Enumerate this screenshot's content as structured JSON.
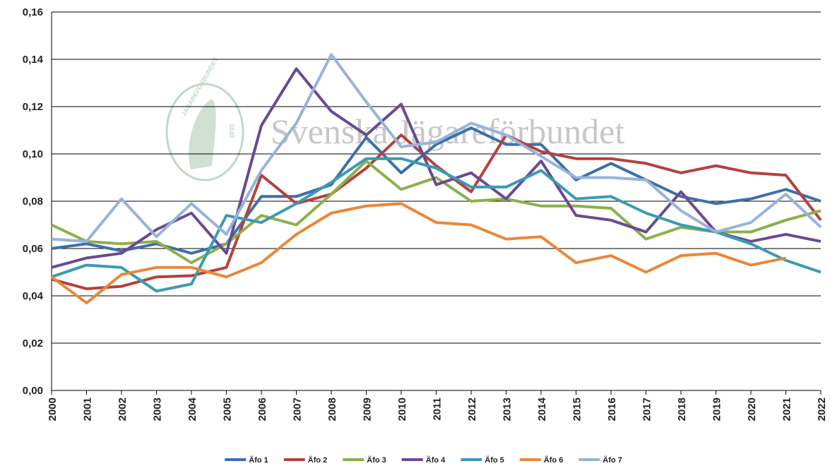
{
  "chart_data": {
    "type": "line",
    "watermark": "Svenska Jägareförbundet",
    "logo_text": "JÄGAREFÖRBUNDET",
    "logo_year": "1830",
    "x": [
      2000,
      2001,
      2002,
      2003,
      2004,
      2005,
      2006,
      2007,
      2008,
      2009,
      2010,
      2011,
      2012,
      2013,
      2014,
      2015,
      2016,
      2017,
      2018,
      2019,
      2020,
      2021,
      2022
    ],
    "xlim": [
      2000,
      2022
    ],
    "xticks": [
      2000,
      2001,
      2002,
      2003,
      2004,
      2005,
      2006,
      2007,
      2008,
      2009,
      2010,
      2011,
      2012,
      2013,
      2014,
      2015,
      2016,
      2017,
      2018,
      2019,
      2020,
      2021,
      2022
    ],
    "ylim": [
      0,
      0.16
    ],
    "yticks": [
      {
        "value": 0,
        "label": "0,00"
      },
      {
        "value": 0.02,
        "label": "0,02"
      },
      {
        "value": 0.04,
        "label": "0,04"
      },
      {
        "value": 0.06,
        "label": "0,06"
      },
      {
        "value": 0.08,
        "label": "0,08"
      },
      {
        "value": 0.1,
        "label": "0,10"
      },
      {
        "value": 0.12,
        "label": "0,12"
      },
      {
        "value": 0.14,
        "label": "0,14"
      },
      {
        "value": 0.16,
        "label": "0,16"
      }
    ],
    "grid": true,
    "legend": "bottom",
    "series": [
      {
        "name": "Äfo 1",
        "color": "#3d6faa",
        "values": [
          0.06,
          0.062,
          0.059,
          0.062,
          0.058,
          0.062,
          0.082,
          0.082,
          0.087,
          0.107,
          0.092,
          0.104,
          0.111,
          0.104,
          0.104,
          0.089,
          0.096,
          0.089,
          0.082,
          0.079,
          0.081,
          0.085,
          0.08
        ]
      },
      {
        "name": "Äfo 2",
        "color": "#b5413e",
        "values": [
          0.047,
          0.043,
          0.044,
          0.048,
          0.0485,
          0.052,
          0.091,
          0.079,
          0.083,
          0.094,
          0.108,
          0.095,
          0.084,
          0.108,
          0.101,
          0.098,
          0.098,
          0.096,
          0.092,
          0.095,
          0.092,
          0.091,
          0.072
        ]
      },
      {
        "name": "Äfo 3",
        "color": "#8cb04a",
        "values": [
          0.07,
          0.063,
          0.062,
          0.063,
          0.054,
          0.062,
          0.074,
          0.07,
          0.083,
          0.097,
          0.085,
          0.09,
          0.08,
          0.081,
          0.078,
          0.078,
          0.077,
          0.064,
          0.069,
          0.067,
          0.067,
          0.072,
          0.076
        ]
      },
      {
        "name": "Äfo 4",
        "color": "#6a4a92",
        "values": [
          0.052,
          0.056,
          0.058,
          0.068,
          0.075,
          0.058,
          0.112,
          0.136,
          0.118,
          0.108,
          0.121,
          0.087,
          0.092,
          0.081,
          0.097,
          0.074,
          0.072,
          0.067,
          0.084,
          0.067,
          0.063,
          0.066,
          0.063
        ]
      },
      {
        "name": "Äfo 5",
        "color": "#3a9bb3",
        "values": [
          0.048,
          0.053,
          0.052,
          0.042,
          0.045,
          0.074,
          0.071,
          0.079,
          0.088,
          0.098,
          0.098,
          0.094,
          0.086,
          0.086,
          0.093,
          0.081,
          0.082,
          0.075,
          0.07,
          0.067,
          0.062,
          0.055,
          0.05
        ]
      },
      {
        "name": "Äfo 6",
        "color": "#e8883a",
        "values": [
          0.048,
          0.037,
          0.049,
          0.052,
          0.052,
          0.048,
          0.054,
          0.066,
          0.075,
          0.078,
          0.079,
          0.071,
          0.07,
          0.064,
          0.065,
          0.054,
          0.057,
          0.05,
          0.057,
          0.058,
          0.053,
          0.056,
          null
        ]
      },
      {
        "name": "Äfo 7",
        "color": "#98b3db",
        "values": [
          0.064,
          0.063,
          0.081,
          0.065,
          0.079,
          0.066,
          0.093,
          0.113,
          0.142,
          0.122,
          0.103,
          0.105,
          0.113,
          0.108,
          0.099,
          0.09,
          0.09,
          0.089,
          0.076,
          0.067,
          0.071,
          0.083,
          0.069
        ]
      }
    ]
  }
}
